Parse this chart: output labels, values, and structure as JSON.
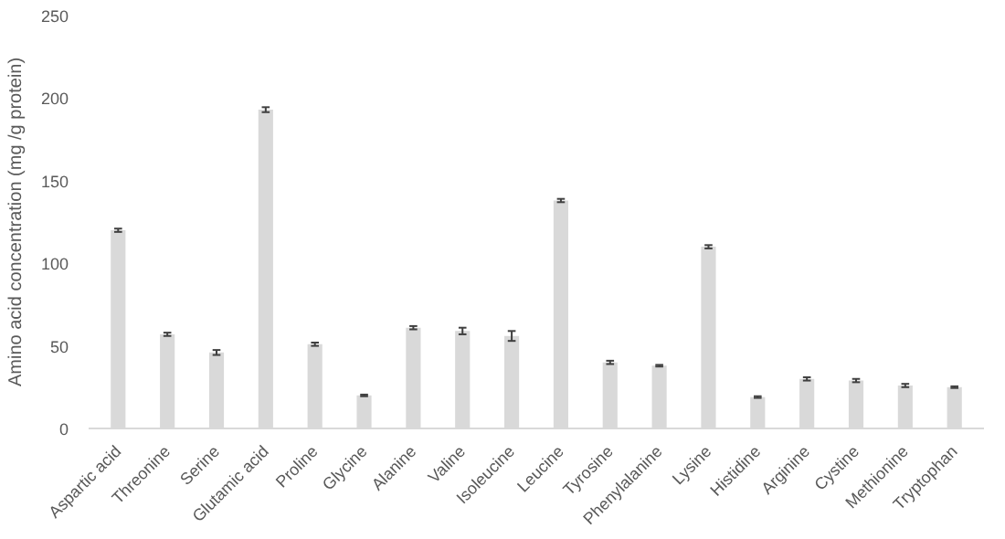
{
  "chart_data": {
    "type": "bar",
    "ylabel": "Amino acid concentration (mg /g protein)",
    "categories": [
      "Aspartic acid",
      "Threonine",
      "Serine",
      "Glutamic acid",
      "Proline",
      "Glycine",
      "Alanine",
      "Valine",
      "Isoleucine",
      "Leucine",
      "Tyrosine",
      "Phenylalanine",
      "Lysine",
      "Histidine",
      "Arginine",
      "Cystine",
      "Methionine",
      "Tryptophan"
    ],
    "values": [
      120,
      57,
      46,
      193,
      51,
      20,
      61,
      59,
      56,
      138,
      40,
      38,
      110,
      19,
      30,
      29,
      26,
      25
    ],
    "errors": [
      1,
      1,
      1.5,
      1.5,
      1,
      0.5,
      1,
      2,
      3,
      1,
      1,
      0.5,
      1,
      0.5,
      1,
      1,
      1,
      0.5
    ],
    "color": "#d9d9d9",
    "ylim": [
      0,
      250
    ],
    "yticks": [
      0,
      50,
      100,
      150,
      200,
      250
    ],
    "grid": false
  }
}
